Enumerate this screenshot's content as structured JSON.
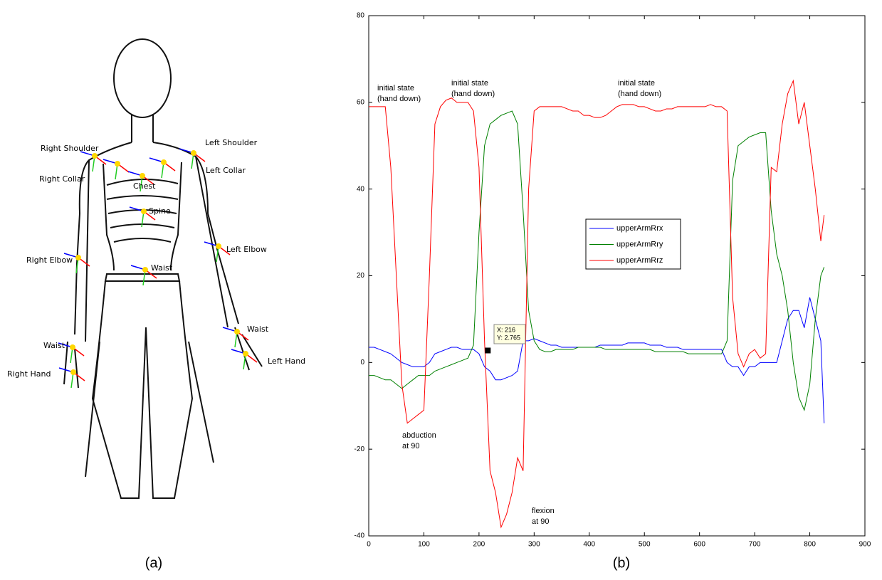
{
  "figure": {
    "panel_labels": [
      "(a)",
      "(b)"
    ],
    "joint_labels": [
      "Right Shoulder",
      "Left Shoulder",
      "Right Collar",
      "Left Collar",
      "Chest",
      "Spine",
      "Right Elbow",
      "Left Elbow",
      "Waist",
      "Waist",
      "Waist",
      "Left Hand",
      "Right Hand"
    ]
  },
  "chart_data": {
    "type": "line",
    "xlim": [
      0,
      900
    ],
    "ylim": [
      -40,
      80
    ],
    "xticks": [
      0,
      100,
      200,
      300,
      400,
      500,
      600,
      700,
      800,
      900
    ],
    "yticks": [
      -40,
      -20,
      0,
      20,
      40,
      60,
      80
    ],
    "x": [
      0,
      10,
      20,
      30,
      40,
      50,
      60,
      70,
      80,
      90,
      100,
      110,
      120,
      130,
      140,
      150,
      160,
      170,
      180,
      190,
      200,
      210,
      220,
      230,
      240,
      250,
      260,
      270,
      280,
      290,
      300,
      310,
      320,
      330,
      340,
      350,
      360,
      370,
      380,
      390,
      400,
      410,
      420,
      430,
      440,
      450,
      460,
      470,
      480,
      490,
      500,
      510,
      520,
      530,
      540,
      550,
      560,
      570,
      580,
      590,
      600,
      610,
      620,
      630,
      640,
      650,
      660,
      670,
      680,
      690,
      700,
      710,
      720,
      730,
      740,
      750,
      760,
      770,
      780,
      790,
      800,
      810,
      820,
      826
    ],
    "series": [
      {
        "name": "upperArmRrx",
        "color": "#0000ff",
        "values": [
          3.5,
          3.5,
          3,
          2.5,
          2,
          1,
          0,
          -0.5,
          -1,
          -1,
          -1,
          0,
          2,
          2.5,
          3,
          3.5,
          3.5,
          3,
          3,
          3,
          2,
          -1,
          -2,
          -4,
          -4,
          -3.5,
          -3,
          -2,
          5,
          5,
          5.5,
          5,
          4.5,
          4,
          4,
          3.5,
          3.5,
          3.5,
          3.5,
          3.5,
          3.5,
          3.5,
          4,
          4,
          4,
          4,
          4,
          4.5,
          4.5,
          4.5,
          4.5,
          4,
          4,
          4,
          3.5,
          3.5,
          3.5,
          3,
          3,
          3,
          3,
          3,
          3,
          3,
          3,
          0,
          -1,
          -1,
          -3,
          -1,
          -1,
          0,
          0,
          0,
          0,
          5,
          10,
          12,
          12,
          8,
          15,
          10,
          5,
          -14
        ]
      },
      {
        "name": "upperArmRry",
        "color": "#008000",
        "values": [
          -3,
          -3,
          -3.5,
          -4,
          -4,
          -5,
          -6,
          -5,
          -4,
          -3,
          -3,
          -3,
          -2,
          -1.5,
          -1,
          -0.5,
          0,
          0.5,
          1,
          4,
          30,
          50,
          55,
          56,
          57,
          57.5,
          58,
          55,
          35,
          12,
          5,
          3,
          2.5,
          2.5,
          3,
          3,
          3,
          3,
          3.5,
          3.5,
          3.5,
          3.5,
          3.5,
          3,
          3,
          3,
          3,
          3,
          3,
          3,
          3,
          3,
          2.5,
          2.5,
          2.5,
          2.5,
          2.5,
          2.5,
          2,
          2,
          2,
          2,
          2,
          2,
          2,
          5,
          42,
          50,
          51,
          52,
          52.5,
          53,
          53,
          35,
          25,
          20,
          12,
          0,
          -8,
          -11,
          -5,
          10,
          20,
          22
        ]
      },
      {
        "name": "upperArmRrz",
        "color": "#ff0000",
        "values": [
          59,
          59,
          59,
          59,
          45,
          20,
          -5,
          -14,
          -13,
          -12,
          -11,
          20,
          55,
          59,
          60.5,
          61,
          60,
          60,
          60,
          58,
          45,
          5,
          -25,
          -30,
          -38,
          -35,
          -30,
          -22,
          -25,
          40,
          58,
          59,
          59,
          59,
          59,
          59,
          58.5,
          58,
          58,
          57,
          57,
          56.5,
          56.5,
          57,
          58,
          59,
          59.5,
          59.5,
          59.5,
          59,
          59,
          58.5,
          58,
          58,
          58.5,
          58.5,
          59,
          59,
          59,
          59,
          59,
          59,
          59.5,
          59,
          59,
          58,
          15,
          2,
          -1,
          2,
          3,
          1,
          2,
          45,
          44,
          55,
          62,
          65,
          55,
          60,
          50,
          40,
          28,
          34
        ]
      }
    ],
    "annotations": [
      [
        "initial state",
        "(hand down)"
      ],
      [
        "initial state",
        "(hand down)"
      ],
      [
        "initial state",
        "(hand down)"
      ],
      [
        "abduction",
        "at 90"
      ],
      [
        "flexion",
        "at 90"
      ]
    ],
    "datatip": {
      "x": 216,
      "y": 2.765,
      "labels": [
        "X: 216",
        "Y: 2.765"
      ]
    }
  }
}
